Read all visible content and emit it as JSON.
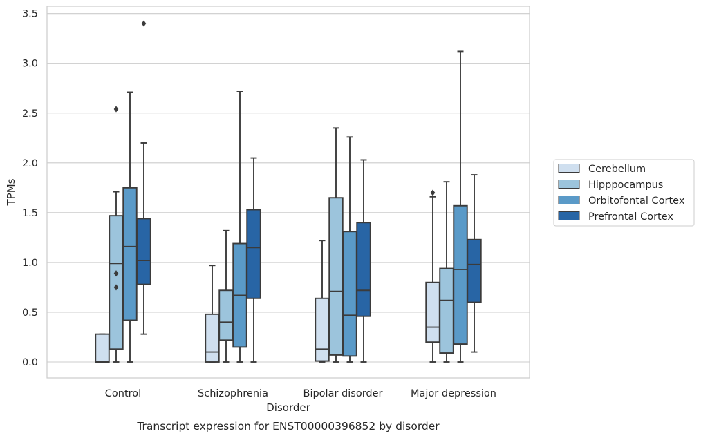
{
  "chart_data": {
    "type": "boxplot",
    "title": "",
    "caption": "Transcript expression for ENST00000396852 by disorder",
    "xlabel": "Disorder",
    "ylabel": "TPMs",
    "ylim": [
      -0.17,
      3.56
    ],
    "yticks": [
      "0.0",
      "0.5",
      "1.0",
      "1.5",
      "2.0",
      "2.5",
      "3.0",
      "3.5"
    ],
    "ytick_values": [
      0,
      0.5,
      1.0,
      1.5,
      2.0,
      2.5,
      3.0,
      3.5
    ],
    "grid": "horizontal",
    "legend_position": "right",
    "categories": [
      "Control",
      "Schizophrenia",
      "Bipolar disorder",
      "Major depression"
    ],
    "series": [
      {
        "name": "Cerebellum",
        "color": "#cfdfef",
        "boxes": [
          {
            "whislo": 0.0,
            "q1": 0.0,
            "med": 0.0,
            "q3": 0.28,
            "whishi": 0.28,
            "fliers": []
          },
          {
            "whislo": 0.0,
            "q1": 0.0,
            "med": 0.1,
            "q3": 0.48,
            "whishi": 0.97,
            "fliers": []
          },
          {
            "whislo": 0.0,
            "q1": 0.01,
            "med": 0.13,
            "q3": 0.64,
            "whishi": 1.22,
            "fliers": []
          },
          {
            "whislo": 0.0,
            "q1": 0.2,
            "med": 0.35,
            "q3": 0.8,
            "whishi": 1.66,
            "fliers": [
              1.7
            ]
          }
        ]
      },
      {
        "name": "Hipppocampus",
        "color": "#9cc4dc",
        "boxes": [
          {
            "whislo": 0.0,
            "q1": 0.13,
            "med": 0.99,
            "q3": 1.47,
            "whishi": 1.71,
            "fliers": [
              2.54,
              0.89,
              0.75
            ]
          },
          {
            "whislo": 0.0,
            "q1": 0.22,
            "med": 0.4,
            "q3": 0.72,
            "whishi": 1.32,
            "fliers": []
          },
          {
            "whislo": 0.0,
            "q1": 0.07,
            "med": 0.71,
            "q3": 1.65,
            "whishi": 2.35,
            "fliers": []
          },
          {
            "whislo": 0.0,
            "q1": 0.09,
            "med": 0.62,
            "q3": 0.94,
            "whishi": 1.81,
            "fliers": []
          }
        ]
      },
      {
        "name": "Orbitofontal Cortex",
        "color": "#5a9ac8",
        "boxes": [
          {
            "whislo": 0.0,
            "q1": 0.42,
            "med": 1.16,
            "q3": 1.75,
            "whishi": 2.71,
            "fliers": []
          },
          {
            "whislo": 0.0,
            "q1": 0.15,
            "med": 0.67,
            "q3": 1.19,
            "whishi": 2.72,
            "fliers": []
          },
          {
            "whislo": 0.0,
            "q1": 0.06,
            "med": 0.47,
            "q3": 1.31,
            "whishi": 2.26,
            "fliers": []
          },
          {
            "whislo": 0.0,
            "q1": 0.18,
            "med": 0.93,
            "q3": 1.57,
            "whishi": 3.12,
            "fliers": []
          }
        ]
      },
      {
        "name": "Prefrontal Cortex",
        "color": "#2865a5",
        "boxes": [
          {
            "whislo": 0.28,
            "q1": 0.78,
            "med": 1.02,
            "q3": 1.44,
            "whishi": 2.2,
            "fliers": [
              3.4
            ]
          },
          {
            "whislo": 0.0,
            "q1": 0.64,
            "med": 1.15,
            "q3": 1.53,
            "whishi": 2.05,
            "fliers": []
          },
          {
            "whislo": 0.0,
            "q1": 0.46,
            "med": 0.72,
            "q3": 1.4,
            "whishi": 2.03,
            "fliers": []
          },
          {
            "whislo": 0.1,
            "q1": 0.6,
            "med": 0.98,
            "q3": 1.23,
            "whishi": 1.88,
            "fliers": []
          }
        ]
      }
    ]
  }
}
